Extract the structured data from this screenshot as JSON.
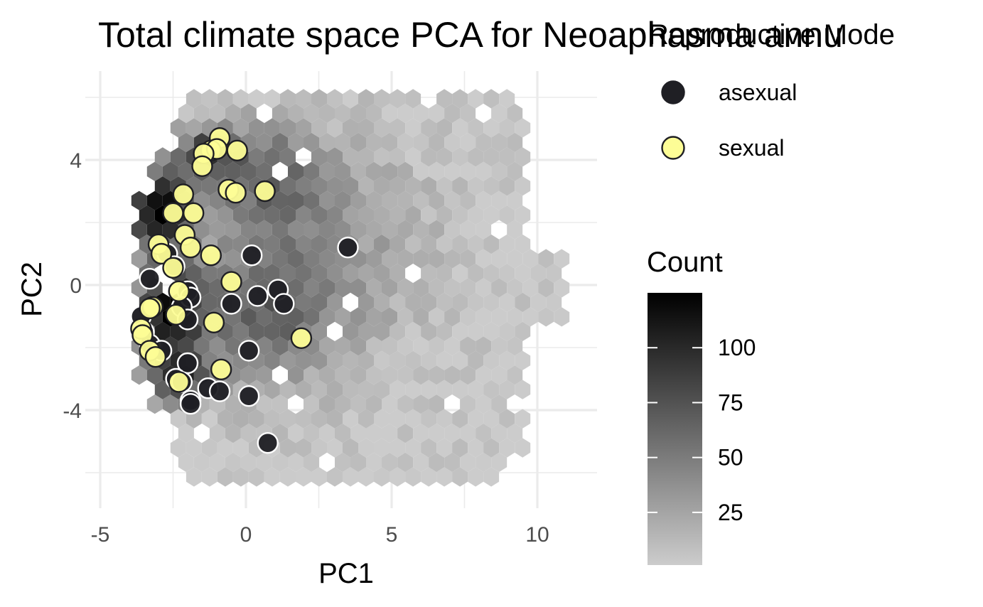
{
  "chart_data": {
    "type": "scatter",
    "title": "Total climate space PCA for Neoaphasma annu",
    "xlabel": "PC1",
    "ylabel": "PC2",
    "xlim": [
      -5,
      12
    ],
    "ylim": [
      -7,
      6.5
    ],
    "x_ticks": [
      -5,
      0,
      5,
      10
    ],
    "y_ticks": [
      -4,
      0,
      4
    ],
    "x_tick_labels": [
      "-5",
      "0",
      "5",
      "10"
    ],
    "y_tick_labels": [
      "-4",
      "0",
      "4"
    ],
    "grid": true,
    "background": {
      "type": "hexbin",
      "hex_size": 0.31,
      "colors": [
        "#cccccc",
        "#000000"
      ],
      "count_range": [
        1,
        125
      ],
      "hotspots": [
        {
          "x": -3.0,
          "y": 2.4,
          "sx": 0.8,
          "sy": 0.9,
          "w": 1.0
        },
        {
          "x": -2.6,
          "y": -0.8,
          "sx": 0.8,
          "sy": 1.1,
          "w": 0.95
        },
        {
          "x": -2.3,
          "y": -3.0,
          "sx": 0.7,
          "sy": 0.6,
          "w": 0.7
        },
        {
          "x": -1.4,
          "y": 4.2,
          "sx": 0.7,
          "sy": 0.6,
          "w": 0.6
        },
        {
          "x": 0.6,
          "y": 3.5,
          "sx": 1.5,
          "sy": 1.2,
          "w": 0.45
        },
        {
          "x": 0.5,
          "y": -1.0,
          "sx": 1.6,
          "sy": 1.6,
          "w": 0.45
        },
        {
          "x": 3.0,
          "y": 1.0,
          "sx": 2.5,
          "sy": 2.5,
          "w": 0.25
        }
      ]
    },
    "legend": {
      "title": "Reproductive Mode",
      "placement": "right",
      "entries": [
        {
          "label": "asexual",
          "color": "#1f1f24"
        },
        {
          "label": "sexual",
          "color": "#fdfd96"
        }
      ]
    },
    "colorbar": {
      "title": "Count",
      "range": [
        1,
        125
      ],
      "tick_values": [
        25,
        50,
        75,
        100
      ],
      "tick_labels": [
        "25",
        "50",
        "75",
        "100"
      ],
      "colors": [
        "#cccccc",
        "#000000"
      ]
    },
    "series": [
      {
        "name": "asexual",
        "color": "#1f1f24",
        "outline": "#ffffff",
        "points": [
          [
            3.5,
            1.2
          ],
          [
            0.2,
            0.95
          ],
          [
            -3.3,
            0.2
          ],
          [
            -2.0,
            -0.2
          ],
          [
            -1.9,
            -0.4
          ],
          [
            -2.2,
            -0.7
          ],
          [
            -0.5,
            -0.6
          ],
          [
            0.4,
            -0.35
          ],
          [
            1.1,
            -0.15
          ],
          [
            1.3,
            -0.6
          ],
          [
            -3.6,
            -1.0
          ],
          [
            -2.0,
            -1.1
          ],
          [
            -3.5,
            -1.5
          ],
          [
            0.1,
            -2.1
          ],
          [
            -3.3,
            -1.9
          ],
          [
            -2.9,
            -2.1
          ],
          [
            -2.0,
            -2.5
          ],
          [
            -2.4,
            -3.0
          ],
          [
            -2.2,
            -3.1
          ],
          [
            -1.3,
            -3.3
          ],
          [
            -0.9,
            -3.4
          ],
          [
            -1.9,
            -3.7
          ],
          [
            -1.9,
            -3.8
          ],
          [
            0.1,
            -3.55
          ],
          [
            0.75,
            -5.05
          ],
          [
            -2.7,
            1.0
          ],
          [
            -2.45,
            0.6
          ]
        ]
      },
      {
        "name": "sexual",
        "color": "#fdfd96",
        "outline": "#1f1f24",
        "points": [
          [
            -0.9,
            4.7
          ],
          [
            -1.2,
            4.3
          ],
          [
            -1.0,
            4.35
          ],
          [
            -1.45,
            4.2
          ],
          [
            -0.3,
            4.3
          ],
          [
            -1.5,
            3.8
          ],
          [
            -0.6,
            3.05
          ],
          [
            -0.35,
            2.95
          ],
          [
            0.65,
            3.0
          ],
          [
            -2.15,
            2.9
          ],
          [
            -2.5,
            2.3
          ],
          [
            -1.8,
            2.3
          ],
          [
            -2.1,
            1.6
          ],
          [
            -3.0,
            1.3
          ],
          [
            -1.9,
            1.2
          ],
          [
            -2.9,
            1.0
          ],
          [
            -1.2,
            0.95
          ],
          [
            -2.5,
            0.55
          ],
          [
            -0.5,
            0.1
          ],
          [
            -2.3,
            -0.2
          ],
          [
            -3.2,
            -0.7
          ],
          [
            -3.3,
            -0.75
          ],
          [
            -2.4,
            -0.95
          ],
          [
            -1.1,
            -1.2
          ],
          [
            1.9,
            -1.7
          ],
          [
            -3.6,
            -1.4
          ],
          [
            -3.55,
            -1.6
          ],
          [
            -3.3,
            -2.1
          ],
          [
            -3.1,
            -2.3
          ],
          [
            -0.85,
            -2.7
          ],
          [
            -2.3,
            -3.1
          ]
        ]
      }
    ]
  }
}
